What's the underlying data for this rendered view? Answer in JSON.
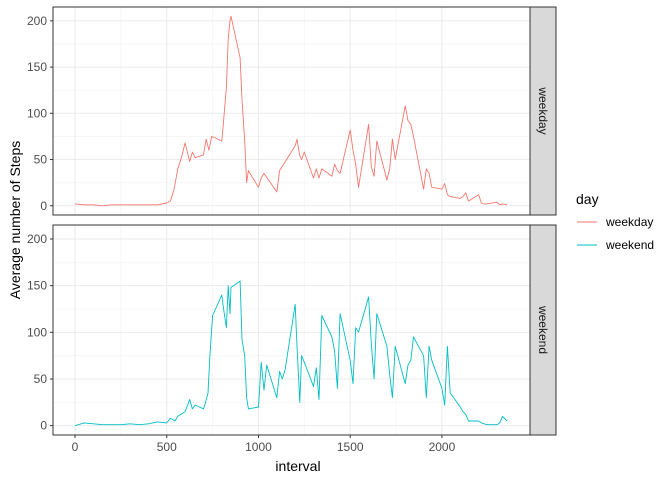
{
  "chart_data": {
    "type": "line",
    "facet_layout": "rows",
    "xlabel": "interval",
    "ylabel": "Average number of Steps",
    "xlim": [
      -120,
      2480
    ],
    "ylim": [
      -10,
      215
    ],
    "x_ticks": [
      0,
      500,
      1000,
      1500,
      2000
    ],
    "x_tick_labels": [
      "0",
      "500",
      "1000",
      "1500",
      "2000"
    ],
    "y_ticks": [
      0,
      50,
      100,
      150,
      200
    ],
    "y_tick_labels": [
      "0",
      "50",
      "100",
      "150",
      "200"
    ],
    "grid": true,
    "legend": {
      "title": "day",
      "placement": "right",
      "entries": [
        {
          "label": "weekday",
          "color": "#F8766D"
        },
        {
          "label": "weekend",
          "color": "#00BFC4"
        }
      ]
    },
    "panels": [
      {
        "strip": "weekday",
        "color": "#F8766D",
        "x": [
          0,
          50,
          100,
          150,
          200,
          250,
          300,
          350,
          400,
          450,
          500,
          520,
          540,
          560,
          580,
          600,
          610,
          625,
          640,
          655,
          700,
          715,
          730,
          745,
          800,
          810,
          825,
          835,
          845,
          850,
          900,
          910,
          925,
          935,
          945,
          1000,
          1015,
          1030,
          1100,
          1115,
          1200,
          1210,
          1225,
          1235,
          1250,
          1300,
          1315,
          1330,
          1345,
          1400,
          1415,
          1430,
          1445,
          1500,
          1515,
          1530,
          1545,
          1600,
          1615,
          1630,
          1645,
          1700,
          1715,
          1730,
          1745,
          1800,
          1815,
          1830,
          1845,
          1900,
          1915,
          1930,
          1945,
          2000,
          2015,
          2030,
          2045,
          2100,
          2115,
          2130,
          2145,
          2200,
          2215,
          2230,
          2245,
          2300,
          2315,
          2330,
          2355
        ],
        "values": [
          2,
          1,
          1,
          0,
          1,
          1,
          1,
          1,
          1,
          1,
          3,
          5,
          18,
          40,
          52,
          68,
          60,
          48,
          58,
          52,
          55,
          72,
          60,
          75,
          70,
          92,
          128,
          180,
          200,
          205,
          160,
          115,
          70,
          25,
          38,
          20,
          30,
          35,
          15,
          38,
          65,
          72,
          54,
          50,
          58,
          30,
          40,
          30,
          40,
          32,
          45,
          38,
          35,
          82,
          60,
          45,
          20,
          88,
          42,
          32,
          70,
          28,
          40,
          72,
          50,
          108,
          92,
          88,
          75,
          18,
          40,
          35,
          20,
          18,
          24,
          12,
          10,
          8,
          10,
          14,
          5,
          12,
          3,
          2,
          2,
          4,
          1,
          2,
          1
        ]
      },
      {
        "strip": "weekend",
        "color": "#00BFC4",
        "x": [
          0,
          50,
          100,
          150,
          200,
          250,
          300,
          350,
          400,
          450,
          500,
          520,
          545,
          560,
          575,
          600,
          610,
          625,
          640,
          655,
          700,
          710,
          725,
          735,
          750,
          800,
          810,
          825,
          835,
          845,
          850,
          900,
          910,
          925,
          935,
          945,
          1000,
          1015,
          1030,
          1045,
          1100,
          1115,
          1130,
          1145,
          1200,
          1210,
          1225,
          1235,
          1250,
          1300,
          1315,
          1330,
          1345,
          1400,
          1415,
          1430,
          1445,
          1500,
          1515,
          1530,
          1545,
          1600,
          1615,
          1630,
          1645,
          1700,
          1715,
          1730,
          1745,
          1800,
          1815,
          1830,
          1845,
          1900,
          1915,
          1930,
          1945,
          2000,
          2015,
          2030,
          2045,
          2100,
          2115,
          2130,
          2145,
          2200,
          2215,
          2230,
          2245,
          2300,
          2315,
          2330,
          2355
        ],
        "values": [
          0,
          3,
          2,
          1,
          1,
          1,
          2,
          1,
          2,
          4,
          3,
          8,
          5,
          10,
          12,
          15,
          20,
          28,
          18,
          22,
          18,
          24,
          35,
          75,
          118,
          140,
          125,
          105,
          150,
          120,
          148,
          155,
          92,
          75,
          30,
          18,
          20,
          68,
          38,
          65,
          30,
          58,
          50,
          60,
          130,
          85,
          25,
          75,
          68,
          42,
          62,
          28,
          118,
          95,
          80,
          40,
          120,
          70,
          45,
          105,
          100,
          138,
          88,
          50,
          120,
          85,
          55,
          30,
          85,
          45,
          65,
          70,
          95,
          75,
          30,
          85,
          70,
          40,
          22,
          85,
          35,
          20,
          15,
          12,
          5,
          5,
          3,
          2,
          1,
          1,
          3,
          10,
          5
        ]
      }
    ]
  }
}
